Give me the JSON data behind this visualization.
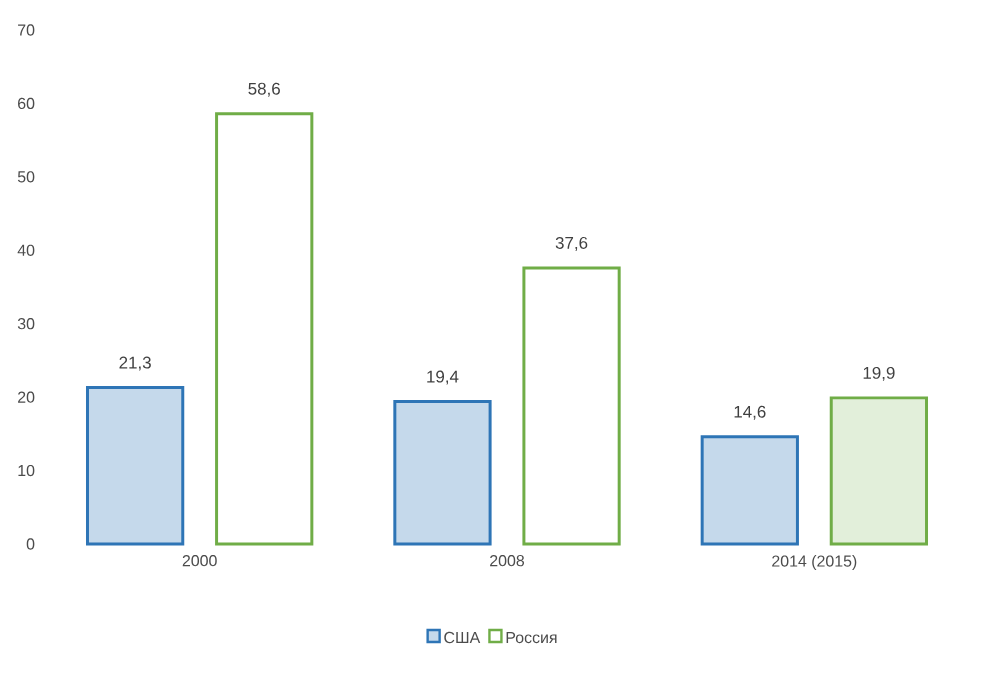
{
  "chart_data": {
    "type": "bar",
    "categories": [
      "2000",
      "2008",
      "2014 (2015)"
    ],
    "series": [
      {
        "name": "США",
        "color": "#2e75b6",
        "colors": [
          "#c5d9eb",
          "#c5d9eb",
          "#c5d9eb"
        ],
        "values": [
          21.3,
          19.4,
          14.6
        ],
        "value_labels": [
          "21,3",
          "19,4",
          "14,6"
        ]
      },
      {
        "name": "Россия",
        "color": "#70ad47",
        "colors": [
          "#ffffff",
          "#ffffff",
          "#e2efda"
        ],
        "values": [
          58.6,
          37.6,
          19.9
        ],
        "value_labels": [
          "58,6",
          "37,6",
          "19,9"
        ]
      }
    ],
    "ylim": [
      0,
      70
    ],
    "yticks": [
      0,
      10,
      20,
      30,
      40,
      50,
      60,
      70
    ],
    "legend": "bottom"
  }
}
